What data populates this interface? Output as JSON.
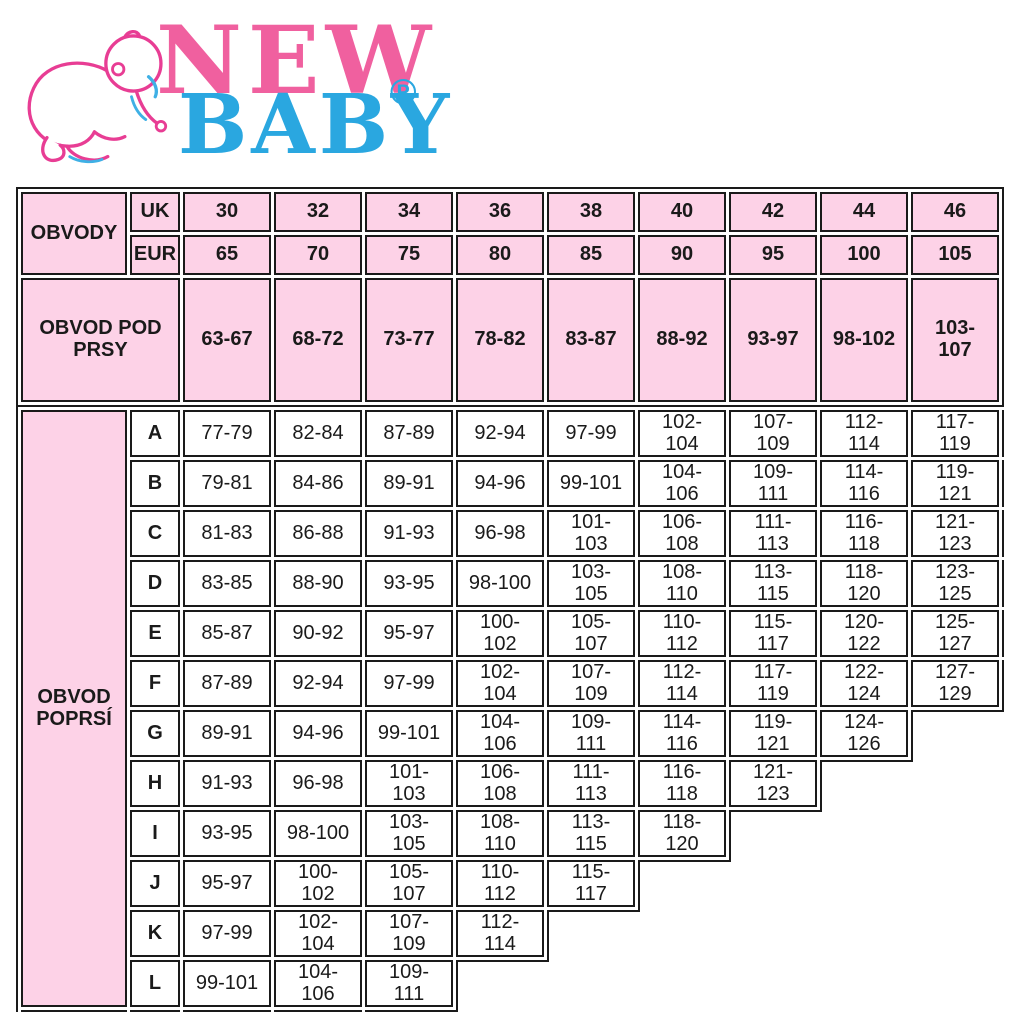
{
  "logo": {
    "brand_line1": "NEW",
    "brand_line2": "BABY",
    "registered_mark": "®",
    "pink": "#f0609f",
    "blue": "#2aa7e0"
  },
  "chart_data": {
    "type": "table",
    "corner_label": "OBVODY",
    "row_labels": {
      "uk": "UK",
      "eur": "EUR"
    },
    "uk_sizes": [
      "30",
      "32",
      "34",
      "36",
      "38",
      "40",
      "42",
      "44",
      "46"
    ],
    "eur_sizes": [
      "65",
      "70",
      "75",
      "80",
      "85",
      "90",
      "95",
      "100",
      "105"
    ],
    "underbust": {
      "label": "OBVOD POD PRSY",
      "ranges": [
        "63-67",
        "68-72",
        "73-77",
        "78-82",
        "83-87",
        "88-92",
        "93-97",
        "98-102",
        "103-107"
      ]
    },
    "bust": {
      "label": "OBVOD POPRSÍ",
      "cups": [
        {
          "cup": "A",
          "ranges": [
            "77-79",
            "82-84",
            "87-89",
            "92-94",
            "97-99",
            "102-104",
            "107-109",
            "112-114",
            "117-119"
          ]
        },
        {
          "cup": "B",
          "ranges": [
            "79-81",
            "84-86",
            "89-91",
            "94-96",
            "99-101",
            "104-106",
            "109-111",
            "114-116",
            "119-121"
          ]
        },
        {
          "cup": "C",
          "ranges": [
            "81-83",
            "86-88",
            "91-93",
            "96-98",
            "101-103",
            "106-108",
            "111-113",
            "116-118",
            "121-123"
          ]
        },
        {
          "cup": "D",
          "ranges": [
            "83-85",
            "88-90",
            "93-95",
            "98-100",
            "103-105",
            "108-110",
            "113-115",
            "118-120",
            "123-125"
          ]
        },
        {
          "cup": "E",
          "ranges": [
            "85-87",
            "90-92",
            "95-97",
            "100-102",
            "105-107",
            "110-112",
            "115-117",
            "120-122",
            "125-127"
          ]
        },
        {
          "cup": "F",
          "ranges": [
            "87-89",
            "92-94",
            "97-99",
            "102-104",
            "107-109",
            "112-114",
            "117-119",
            "122-124",
            "127-129"
          ]
        },
        {
          "cup": "G",
          "ranges": [
            "89-91",
            "94-96",
            "99-101",
            "104-106",
            "109-111",
            "114-116",
            "119-121",
            "124-126"
          ]
        },
        {
          "cup": "H",
          "ranges": [
            "91-93",
            "96-98",
            "101-103",
            "106-108",
            "111-113",
            "116-118",
            "121-123"
          ]
        },
        {
          "cup": "I",
          "ranges": [
            "93-95",
            "98-100",
            "103-105",
            "108-110",
            "113-115",
            "118-120"
          ]
        },
        {
          "cup": "J",
          "ranges": [
            "95-97",
            "100-102",
            "105-107",
            "110-112",
            "115-117"
          ]
        },
        {
          "cup": "K",
          "ranges": [
            "97-99",
            "102-104",
            "107-109",
            "112-114"
          ]
        },
        {
          "cup": "L",
          "ranges": [
            "99-101",
            "104-106",
            "109-111"
          ]
        }
      ]
    },
    "colors": {
      "header_bg": "#fdd2e7",
      "cell_bg": "#ffffff",
      "border": "#1a1a1a"
    }
  }
}
